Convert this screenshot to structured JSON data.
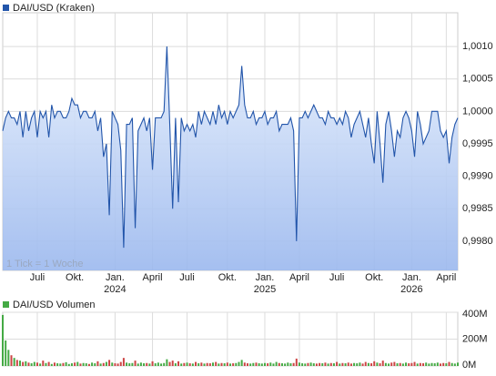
{
  "chart_data": [
    {
      "type": "line",
      "legend": "DAI/USD (Kraken)",
      "note": "1 Tick = 1 Woche",
      "color": "#2255aa",
      "x": [
        0,
        1,
        2,
        3,
        4,
        5,
        6,
        7,
        8,
        9,
        10,
        11,
        12,
        13,
        14,
        15,
        16,
        17,
        18,
        19,
        20,
        21,
        22,
        23,
        24,
        25,
        26,
        27,
        28,
        29,
        30,
        31,
        32,
        33,
        34,
        35,
        36,
        37,
        38,
        39,
        40,
        41,
        42,
        43,
        44,
        45,
        46,
        47,
        48,
        49,
        50,
        51,
        52,
        53,
        54,
        55,
        56,
        57,
        58,
        59,
        60,
        61,
        62,
        63,
        64,
        65,
        66,
        67,
        68,
        69,
        70,
        71,
        72,
        73,
        74,
        75,
        76,
        77,
        78,
        79,
        80,
        81,
        82,
        83,
        84,
        85,
        86,
        87,
        88,
        89,
        90,
        91,
        92,
        93,
        94,
        95,
        96,
        97,
        98,
        99,
        100,
        101,
        102,
        103,
        104,
        105,
        106,
        107,
        108,
        109,
        110,
        111,
        112,
        113,
        114,
        115,
        116,
        117,
        118,
        119,
        120,
        121,
        122,
        123,
        124,
        125,
        126,
        127,
        128,
        129,
        130,
        131,
        132,
        133,
        134,
        135,
        136,
        137,
        138,
        139,
        140,
        141,
        142,
        143,
        144,
        145,
        146,
        147,
        148,
        149,
        150,
        151,
        152,
        153,
        154,
        155,
        156,
        157,
        158
      ],
      "values": [
        0.9997,
        0.9999,
        1.0,
        0.9999,
        0.9999,
        0.9998,
        1.0,
        0.9996,
        1.0,
        0.9997,
        0.9999,
        1.0,
        0.9996,
        1.0,
        0.9999,
        1.0,
        0.9996,
        1.0001,
        0.9999,
        1.0,
        1.0,
        0.9999,
        0.9999,
        1.0,
        1.0002,
        1.0001,
        1.0001,
        0.9999,
        1.0,
        1.0,
        0.9999,
        0.9999,
        1.0,
        0.9997,
        0.9999,
        0.9993,
        0.9995,
        0.9984,
        1.0,
        0.9999,
        0.9998,
        0.9994,
        0.9979,
        0.9998,
        0.9998,
        0.9999,
        0.9982,
        0.9997,
        0.9998,
        0.9999,
        0.9997,
        0.9999,
        0.9991,
        0.9999,
        0.9999,
        0.9999,
        1.0,
        1.001,
        0.9998,
        0.9985,
        0.9999,
        0.9986,
        0.9999,
        0.9997,
        0.9998,
        0.9997,
        0.9998,
        0.9996,
        1.0,
        0.9998,
        1.0,
        0.9999,
        0.9998,
        1.0,
        0.9998,
        1.0001,
        0.9999,
        1.0,
        0.9998,
        1.0,
        0.9999,
        1.0,
        1.0001,
        1.0007,
        1.0001,
        0.9999,
        0.9999,
        1.0,
        0.9998,
        0.9999,
        0.9999,
        1.0,
        0.9998,
        0.9999,
        0.9999,
        1.0,
        0.9997,
        0.9998,
        0.9998,
        0.9998,
        0.9999,
        0.9997,
        0.998,
        0.9999,
        0.9999,
        1.0,
        0.9999,
        1.0,
        1.0001,
        1.0,
        0.9999,
        0.9999,
        0.9998,
        1.0,
        0.9999,
        0.9999,
        0.9998,
        0.9999,
        0.9998,
        1.0,
        0.9999,
        0.9996,
        0.9998,
        0.9999,
        1.0,
        0.9998,
        0.9996,
        0.9999,
        0.9995,
        0.9992,
        1.0,
        0.9995,
        0.9989,
        0.9998,
        1.0,
        0.9997,
        0.9993,
        0.9997,
        0.9996,
        0.9999,
        1.0,
        0.9999,
        0.9997,
        0.9993,
        1.0,
        0.9998,
        0.9995,
        0.9996,
        0.9997,
        1.0,
        1.0,
        1.0,
        0.9997,
        0.9996,
        0.9997,
        0.9992,
        0.9996,
        0.9998,
        0.9999
      ],
      "xlim": [
        0,
        158
      ],
      "xticks": [
        {
          "value": 12,
          "label": "Juli"
        },
        {
          "value": 25,
          "label": "Okt."
        },
        {
          "value": 39,
          "label": "Jan."
        },
        {
          "value": 52,
          "label": "April"
        },
        {
          "value": 64,
          "label": "Juli"
        },
        {
          "value": 78,
          "label": "Okt."
        },
        {
          "value": 91,
          "label": "Jan."
        },
        {
          "value": 103,
          "label": "April"
        },
        {
          "value": 116,
          "label": "Juli"
        },
        {
          "value": 129,
          "label": "Okt."
        },
        {
          "value": 142,
          "label": "Jan."
        },
        {
          "value": 154,
          "label": "April"
        }
      ],
      "xyears": [
        {
          "value": 39,
          "label": "2024"
        },
        {
          "value": 91,
          "label": "2025"
        },
        {
          "value": 142,
          "label": "2026"
        }
      ],
      "ylim": [
        0.99755,
        1.00152
      ],
      "yticks": [
        {
          "value": 0.998,
          "label": "0,9980"
        },
        {
          "value": 0.9985,
          "label": "0,9985"
        },
        {
          "value": 0.999,
          "label": "0,9990"
        },
        {
          "value": 0.9995,
          "label": "0,9995"
        },
        {
          "value": 1.0,
          "label": "1,0000"
        },
        {
          "value": 1.0005,
          "label": "1,0005"
        },
        {
          "value": 1.001,
          "label": "1,0010"
        }
      ],
      "grid": true
    },
    {
      "type": "bar",
      "legend": "DAI/USD Volumen",
      "color": "#44aa44",
      "down_color": "#cc4444",
      "values": [
        380,
        190,
        120,
        80,
        60,
        45,
        40,
        30,
        35,
        25,
        20,
        30,
        25,
        18,
        40,
        22,
        30,
        15,
        25,
        20,
        18,
        22,
        28,
        15,
        20,
        25,
        30,
        18,
        22,
        20,
        15,
        25,
        20,
        35,
        18,
        22,
        30,
        45,
        25,
        20,
        18,
        30,
        60,
        25,
        20,
        22,
        40,
        18,
        25,
        20,
        22,
        18,
        35,
        20,
        25,
        18,
        22,
        50,
        30,
        40,
        20,
        35,
        18,
        22,
        25,
        20,
        18,
        30,
        20,
        25,
        18,
        22,
        20,
        25,
        30,
        18,
        22,
        20,
        25,
        18,
        20,
        22,
        30,
        45,
        25,
        20,
        18,
        22,
        25,
        20,
        18,
        22,
        20,
        25,
        18,
        30,
        22,
        20,
        18,
        25,
        20,
        22,
        55,
        25,
        20,
        18,
        22,
        25,
        20,
        18,
        22,
        20,
        25,
        18,
        22,
        20,
        30,
        18,
        22,
        20,
        25,
        18,
        22,
        20,
        25,
        18,
        30,
        22,
        20,
        35,
        25,
        20,
        40,
        22,
        18,
        25,
        30,
        20,
        22,
        18,
        25,
        20,
        22,
        30,
        18,
        22,
        20,
        25,
        18,
        22,
        20,
        25,
        18,
        22,
        20,
        30,
        22,
        18,
        25
      ],
      "ylim": [
        0,
        400
      ],
      "yticks": [
        {
          "value": 0,
          "label": "0M"
        },
        {
          "value": 200,
          "label": "200M"
        },
        {
          "value": 400,
          "label": "400M"
        }
      ]
    }
  ]
}
